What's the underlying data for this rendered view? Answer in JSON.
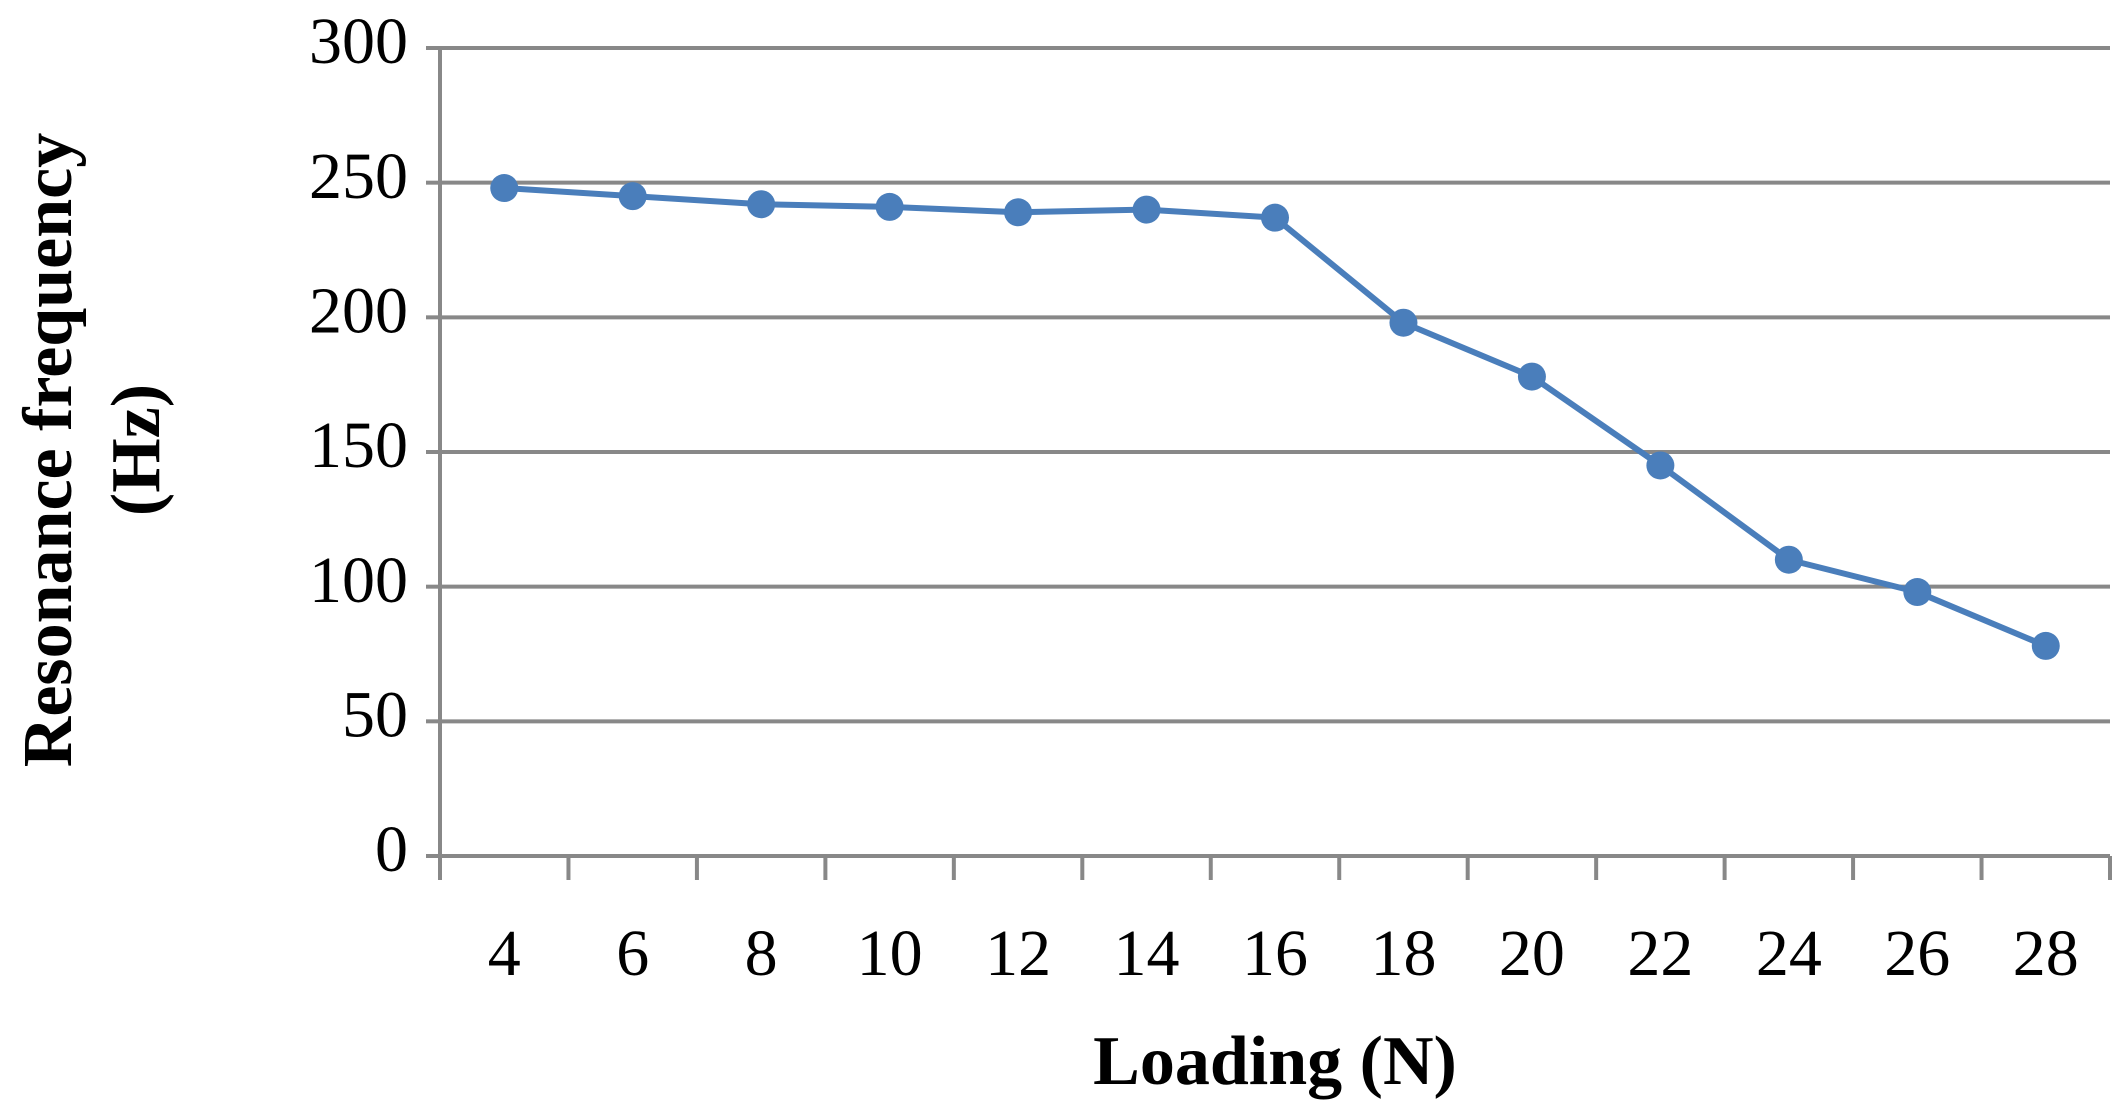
{
  "chart_data": {
    "type": "line",
    "x_label": "Loading (N)",
    "y_label": [
      "Resonance frequency",
      "(Hz)"
    ],
    "categories": [
      "4",
      "6",
      "8",
      "10",
      "12",
      "14",
      "16",
      "18",
      "20",
      "22",
      "24",
      "26",
      "28"
    ],
    "series": [
      {
        "name": "Resonance frequency",
        "color": "#4a7ebb",
        "values": [
          248,
          245,
          242,
          241,
          239,
          240,
          237,
          198,
          178,
          145,
          110,
          98,
          78
        ]
      }
    ],
    "ylim": [
      0,
      300
    ],
    "yticks": [
      0,
      50,
      100,
      150,
      200,
      250,
      300
    ],
    "grid": true,
    "legend": false
  }
}
